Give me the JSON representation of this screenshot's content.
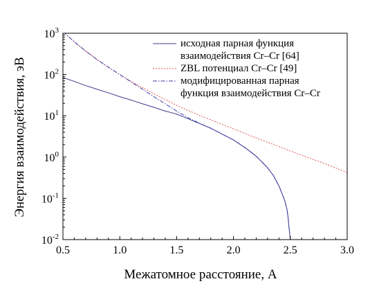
{
  "chart_data": {
    "type": "line",
    "xlabel": "Межатомное расстояние, А",
    "ylabel": "Энергия взаимодействия, эВ",
    "xlim": [
      0.5,
      3.0
    ],
    "ylim": [
      0.01,
      1000
    ],
    "yscale": "log",
    "x_ticks": [
      {
        "value": 0.5,
        "label": "0.5"
      },
      {
        "value": 1.0,
        "label": "1.0"
      },
      {
        "value": 1.5,
        "label": "1.5"
      },
      {
        "value": 2.0,
        "label": "2.0"
      },
      {
        "value": 2.5,
        "label": "2.5"
      },
      {
        "value": 3.0,
        "label": "3.0"
      }
    ],
    "y_ticks": [
      {
        "value": 0.01,
        "base": "10",
        "exp": "-2"
      },
      {
        "value": 0.1,
        "base": "10",
        "exp": "-1"
      },
      {
        "value": 1,
        "base": "10",
        "exp": "0"
      },
      {
        "value": 10,
        "base": "10",
        "exp": "1"
      },
      {
        "value": 100,
        "base": "10",
        "exp": "2"
      },
      {
        "value": 1000,
        "base": "10",
        "exp": "3"
      }
    ],
    "grid": false,
    "legend_position": "top-right",
    "series": [
      {
        "name_lines": [
          "исходная парная функция",
          "взаимодействия Cr–Cr [64]"
        ],
        "color": "#3c3c8c",
        "dash": "solid",
        "x": [
          0.5,
          0.6,
          0.7,
          0.8,
          0.9,
          1.0,
          1.1,
          1.2,
          1.3,
          1.4,
          1.5,
          1.6,
          1.7,
          1.8,
          1.9,
          2.0,
          2.1,
          2.2,
          2.3,
          2.35,
          2.4,
          2.45,
          2.47,
          2.48,
          2.49,
          2.5
        ],
        "y": [
          85,
          68,
          54,
          44,
          36,
          29,
          24,
          19.5,
          16,
          13,
          11,
          8.5,
          6.5,
          5,
          3.6,
          2.6,
          1.7,
          1.05,
          0.55,
          0.36,
          0.2,
          0.09,
          0.055,
          0.035,
          0.018,
          0.01
        ]
      },
      {
        "name_lines": [
          "ZBL потенциал Cr–Cr [49]"
        ],
        "color": "#e05050",
        "dash": "dotted",
        "x": [
          0.5,
          0.6,
          0.7,
          0.8,
          0.9,
          1.0,
          1.1,
          1.2,
          1.3,
          1.4,
          1.5,
          1.6,
          1.7,
          1.8,
          1.9,
          2.0,
          2.2,
          2.4,
          2.6,
          2.8,
          3.0
        ],
        "y": [
          1100,
          620,
          370,
          230,
          150,
          100,
          68,
          48,
          34,
          25,
          18,
          13.5,
          10.3,
          8,
          6.2,
          4.8,
          2.9,
          1.8,
          1.1,
          0.7,
          0.42
        ]
      },
      {
        "name_lines": [
          "модифицированная парная",
          "функция взаимодействия Cr–Cr"
        ],
        "color": "#3a3aa8",
        "dash": "dashdot",
        "x": [
          0.5,
          0.6,
          0.7,
          0.8,
          0.9,
          1.0,
          1.1,
          1.2,
          1.3,
          1.4,
          1.5,
          1.6,
          1.7,
          1.8,
          1.9,
          2.0,
          2.1,
          2.2,
          2.3,
          2.35,
          2.4,
          2.45,
          2.47,
          2.48,
          2.49,
          2.5
        ],
        "y": [
          1100,
          620,
          370,
          230,
          150,
          100,
          66,
          44,
          29,
          19.5,
          13,
          9,
          6.6,
          5,
          3.6,
          2.6,
          1.7,
          1.05,
          0.55,
          0.36,
          0.2,
          0.09,
          0.055,
          0.035,
          0.018,
          0.01
        ]
      }
    ]
  }
}
